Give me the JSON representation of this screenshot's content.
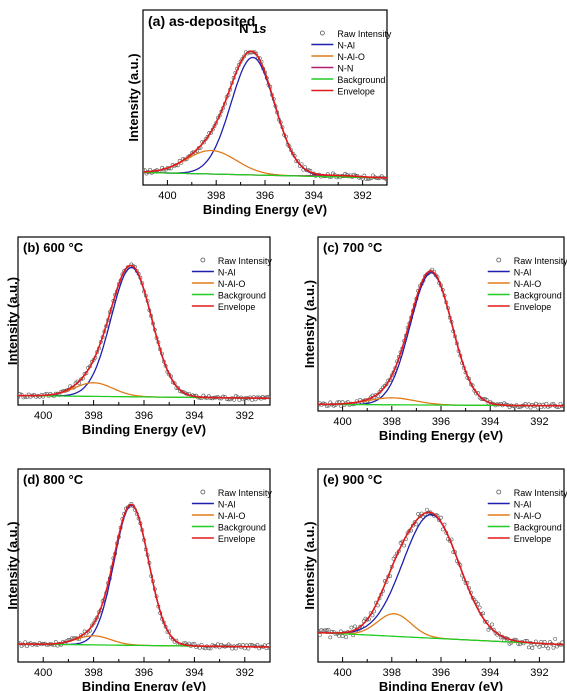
{
  "colors": {
    "raw": "#555555",
    "n_al": "#1f1faf",
    "n_al_o": "#e07b1a",
    "n_n": "#b01e6e",
    "background": "#22cc22",
    "envelope": "#e31a1c"
  },
  "chart_data": [
    {
      "type": "line",
      "title": "(a) as-deposited",
      "annotation": "N 1s",
      "xlabel": "Binding Energy (eV)",
      "ylabel": "Intensity (a.u.)",
      "xlim": [
        401,
        391
      ],
      "x_ticks": [
        400,
        398,
        396,
        394,
        392
      ],
      "x_reversed": true,
      "legend_position": "top-right",
      "series": [
        {
          "name": "Raw Intensity",
          "kind": "scatter",
          "color": "#555555"
        },
        {
          "name": "N-Al",
          "kind": "gaussian",
          "center": 396.5,
          "fwhm": 2.1,
          "height": 0.85,
          "color": "#1f1faf"
        },
        {
          "name": "N-Al-O",
          "kind": "gaussian",
          "center": 398.2,
          "fwhm": 2.4,
          "height": 0.17,
          "color": "#e07b1a"
        },
        {
          "name": "N-N",
          "kind": "gaussian",
          "center": 393.0,
          "fwhm": 2.0,
          "height": 0.01,
          "color": "#b01e6e"
        },
        {
          "name": "Background",
          "kind": "linear",
          "start": 0.04,
          "end": 0.0,
          "color": "#22cc22"
        },
        {
          "name": "Envelope",
          "kind": "envelope",
          "color": "#e31a1c"
        }
      ]
    },
    {
      "type": "line",
      "title": "(b) 600 °C",
      "xlabel": "Binding Energy (eV)",
      "ylabel": "Intensity (a.u.)",
      "xlim": [
        401,
        391
      ],
      "x_ticks": [
        400,
        398,
        396,
        394,
        392
      ],
      "x_reversed": true,
      "legend_position": "top-right",
      "series": [
        {
          "name": "Raw Intensity",
          "kind": "scatter",
          "color": "#555555"
        },
        {
          "name": "N-Al",
          "kind": "gaussian",
          "center": 396.5,
          "fwhm": 1.9,
          "height": 0.95,
          "color": "#1f1faf"
        },
        {
          "name": "N-Al-O",
          "kind": "gaussian",
          "center": 398.0,
          "fwhm": 1.8,
          "height": 0.1,
          "color": "#e07b1a"
        },
        {
          "name": "Background",
          "kind": "linear",
          "start": 0.02,
          "end": 0.0,
          "color": "#22cc22"
        },
        {
          "name": "Envelope",
          "kind": "envelope",
          "color": "#e31a1c"
        }
      ]
    },
    {
      "type": "line",
      "title": "(c)  700 °C",
      "xlabel": "Binding Energy (eV)",
      "ylabel": "Intensity (a.u.)",
      "xlim": [
        401,
        391
      ],
      "x_ticks": [
        400,
        398,
        396,
        394,
        392
      ],
      "x_reversed": true,
      "legend_position": "top-right",
      "series": [
        {
          "name": "Raw Intensity",
          "kind": "scatter",
          "color": "#555555"
        },
        {
          "name": "N-Al",
          "kind": "gaussian",
          "center": 396.4,
          "fwhm": 2.0,
          "height": 0.95,
          "color": "#1f1faf"
        },
        {
          "name": "N-Al-O",
          "kind": "gaussian",
          "center": 398.0,
          "fwhm": 2.2,
          "height": 0.05,
          "color": "#e07b1a"
        },
        {
          "name": "Background",
          "kind": "linear",
          "start": 0.01,
          "end": 0.0,
          "color": "#22cc22"
        },
        {
          "name": "Envelope",
          "kind": "envelope",
          "color": "#e31a1c"
        }
      ]
    },
    {
      "type": "line",
      "title": "(d) 800 °C",
      "xlabel": "Binding Energy (eV)",
      "ylabel": "Intensity (a.u.)",
      "xlim": [
        401,
        391
      ],
      "x_ticks": [
        400,
        398,
        396,
        394,
        392
      ],
      "x_reversed": true,
      "legend_position": "top-right",
      "series": [
        {
          "name": "Raw Intensity",
          "kind": "scatter",
          "color": "#555555"
        },
        {
          "name": "N-Al",
          "kind": "gaussian",
          "center": 396.5,
          "fwhm": 1.6,
          "height": 0.93,
          "color": "#1f1faf"
        },
        {
          "name": "N-Al-O",
          "kind": "gaussian",
          "center": 398.0,
          "fwhm": 1.6,
          "height": 0.06,
          "color": "#e07b1a"
        },
        {
          "name": "Background",
          "kind": "linear",
          "start": 0.03,
          "end": 0.01,
          "color": "#22cc22"
        },
        {
          "name": "Envelope",
          "kind": "envelope",
          "color": "#e31a1c"
        }
      ]
    },
    {
      "type": "line",
      "title": "(e) 900 °C",
      "xlabel": "Binding Energy (eV)",
      "ylabel": "Intensity (a.u.)",
      "xlim": [
        401,
        391
      ],
      "x_ticks": [
        400,
        398,
        396,
        394,
        392
      ],
      "x_reversed": true,
      "legend_position": "top-right",
      "series": [
        {
          "name": "Raw Intensity",
          "kind": "scatter",
          "color": "#555555"
        },
        {
          "name": "N-Al",
          "kind": "gaussian",
          "center": 396.4,
          "fwhm": 2.7,
          "height": 0.82,
          "color": "#1f1faf"
        },
        {
          "name": "N-Al-O",
          "kind": "gaussian",
          "center": 397.9,
          "fwhm": 1.6,
          "height": 0.15,
          "color": "#e07b1a"
        },
        {
          "name": "Background",
          "kind": "linear",
          "start": 0.08,
          "end": 0.0,
          "color": "#22cc22"
        },
        {
          "name": "Envelope",
          "kind": "envelope",
          "color": "#e31a1c"
        }
      ]
    }
  ]
}
